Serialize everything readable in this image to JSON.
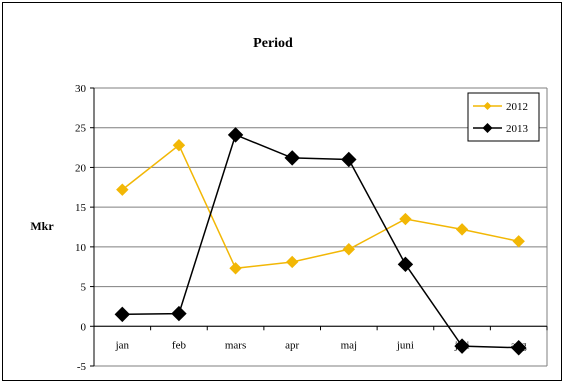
{
  "chart_data": {
    "type": "line",
    "title": "Period",
    "ylabel": "Mkr",
    "xlabel": "",
    "categories": [
      "jan",
      "feb",
      "mars",
      "apr",
      "maj",
      "juni",
      "juli",
      "aug"
    ],
    "ylim": [
      -5,
      30
    ],
    "yticks": [
      -5,
      0,
      5,
      10,
      15,
      20,
      25,
      30
    ],
    "grid": true,
    "legend_position": "top-right",
    "series": [
      {
        "name": "2012",
        "color": "#f2b705",
        "marker": "diamond",
        "values": [
          17.2,
          22.8,
          7.3,
          8.1,
          9.7,
          13.5,
          12.2,
          10.7
        ]
      },
      {
        "name": "2013",
        "color": "#000000",
        "marker": "diamond",
        "values": [
          1.5,
          1.6,
          24.1,
          21.2,
          21.0,
          7.8,
          -2.5,
          -2.7
        ]
      }
    ]
  }
}
